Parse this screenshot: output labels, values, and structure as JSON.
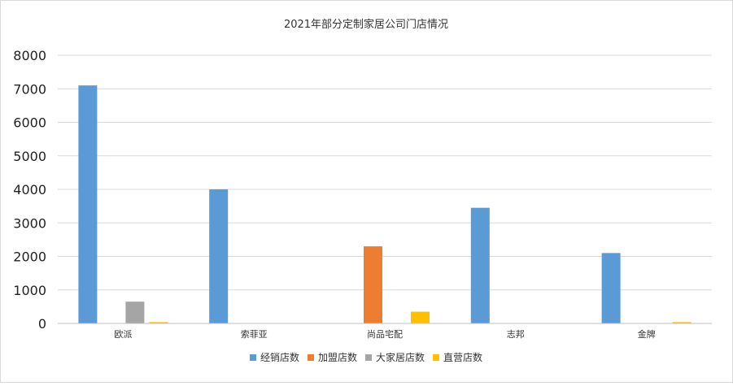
{
  "chart_data": {
    "type": "bar",
    "title": "2021年部分定制家居公司门店情况",
    "xlabel": "",
    "ylabel": "",
    "categories": [
      "欧派",
      "索菲亚",
      "尚品宅配",
      "志邦",
      "金牌"
    ],
    "series": [
      {
        "name": "经销店数",
        "color": "#5b9bd5",
        "values": [
          7100,
          4000,
          0,
          3450,
          2100
        ]
      },
      {
        "name": "加盟店数",
        "color": "#ed7d31",
        "values": [
          0,
          0,
          2300,
          0,
          0
        ]
      },
      {
        "name": "大家居店数",
        "color": "#a5a5a5",
        "values": [
          650,
          0,
          0,
          0,
          0
        ]
      },
      {
        "name": "直营店数",
        "color": "#ffc000",
        "values": [
          40,
          0,
          350,
          0,
          40
        ]
      }
    ],
    "ylim": [
      0,
      8000
    ],
    "yticks": [
      0,
      1000,
      2000,
      3000,
      4000,
      5000,
      6000,
      7000,
      8000
    ],
    "grid": true,
    "legend_position": "bottom"
  }
}
